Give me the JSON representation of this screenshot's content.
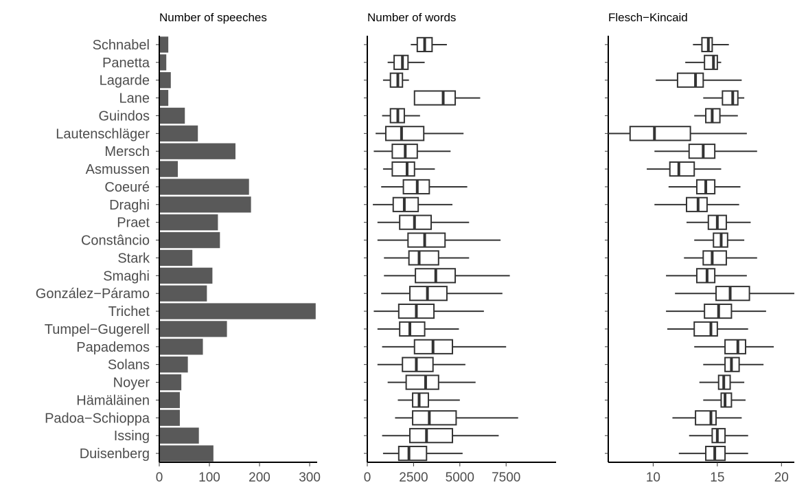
{
  "chart_data": [
    {
      "type": "bar",
      "orientation": "horizontal",
      "title": "Number of speeches",
      "xlabel": "",
      "ylabel": "",
      "xlim": [
        0,
        315
      ],
      "xticks": [
        0,
        100,
        200,
        300
      ],
      "categories": [
        "Schnabel",
        "Panetta",
        "Lagarde",
        "Lane",
        "Guindos",
        "Lautenschläger",
        "Mersch",
        "Asmussen",
        "Coeuré",
        "Draghi",
        "Praet",
        "Constâncio",
        "Stark",
        "Smaghi",
        "González−Páramo",
        "Trichet",
        "Tumpel−Gugerell",
        "Papademos",
        "Solans",
        "Noyer",
        "Hämäläinen",
        "Padoa−Schioppa",
        "Issing",
        "Duisenberg"
      ],
      "values": [
        18,
        14,
        23,
        18,
        51,
        77,
        152,
        37,
        179,
        183,
        117,
        121,
        66,
        106,
        95,
        312,
        135,
        87,
        57,
        44,
        41,
        41,
        79,
        108
      ],
      "color": "#595959",
      "grid": false
    },
    {
      "type": "boxplot",
      "orientation": "horizontal",
      "title": "Number of words",
      "xlabel": "",
      "xlim": [
        0,
        10200
      ],
      "xticks": [
        0,
        2500,
        5000,
        7500
      ],
      "xtick_labels": [
        "0",
        "2500",
        "5000",
        "7500"
      ],
      "grid": false,
      "boxes": [
        {
          "category": "Schnabel",
          "whisker_low": 2350,
          "q1": 2700,
          "median": 3100,
          "q3": 3500,
          "whisker_high": 4300
        },
        {
          "category": "Panetta",
          "whisker_low": 1100,
          "q1": 1450,
          "median": 1900,
          "q3": 2200,
          "whisker_high": 3100
        },
        {
          "category": "Lagarde",
          "whisker_low": 850,
          "q1": 1250,
          "median": 1650,
          "q3": 1900,
          "whisker_high": 2250
        },
        {
          "category": "Lane",
          "whisker_low": 2550,
          "q1": 2550,
          "median": 4100,
          "q3": 4750,
          "whisker_high": 6100
        },
        {
          "category": "Guindos",
          "whisker_low": 800,
          "q1": 1250,
          "median": 1650,
          "q3": 2000,
          "whisker_high": 2850
        },
        {
          "category": "Lautenschläger",
          "whisker_low": 450,
          "q1": 1000,
          "median": 1850,
          "q3": 3050,
          "whisker_high": 5200
        },
        {
          "category": "Mersch",
          "whisker_low": 350,
          "q1": 1350,
          "median": 2050,
          "q3": 2700,
          "whisker_high": 4500
        },
        {
          "category": "Asmussen",
          "whisker_low": 850,
          "q1": 1350,
          "median": 2150,
          "q3": 2550,
          "whisker_high": 3650
        },
        {
          "category": "Coeuré",
          "whisker_low": 750,
          "q1": 1950,
          "median": 2700,
          "q3": 3350,
          "whisker_high": 5400
        },
        {
          "category": "Draghi",
          "whisker_low": 300,
          "q1": 1400,
          "median": 2000,
          "q3": 2750,
          "whisker_high": 4600
        },
        {
          "category": "Praet",
          "whisker_low": 550,
          "q1": 1750,
          "median": 2550,
          "q3": 3450,
          "whisker_high": 5500
        },
        {
          "category": "Constâncio",
          "whisker_low": 550,
          "q1": 2200,
          "median": 3100,
          "q3": 4200,
          "whisker_high": 7200
        },
        {
          "category": "Stark",
          "whisker_low": 900,
          "q1": 2250,
          "median": 2800,
          "q3": 3850,
          "whisker_high": 5500
        },
        {
          "category": "Smaghi",
          "whisker_low": 900,
          "q1": 2600,
          "median": 3700,
          "q3": 4750,
          "whisker_high": 7700
        },
        {
          "category": "González−Páramo",
          "whisker_low": 750,
          "q1": 2300,
          "median": 3250,
          "q3": 4300,
          "whisker_high": 7300
        },
        {
          "category": "Trichet",
          "whisker_low": 350,
          "q1": 1700,
          "median": 2650,
          "q3": 3600,
          "whisker_high": 6300
        },
        {
          "category": "Tumpel−Gugerell",
          "whisker_low": 550,
          "q1": 1750,
          "median": 2300,
          "q3": 3100,
          "whisker_high": 4950
        },
        {
          "category": "Papademos",
          "whisker_low": 800,
          "q1": 2550,
          "median": 3550,
          "q3": 4600,
          "whisker_high": 7500
        },
        {
          "category": "Solans",
          "whisker_low": 550,
          "q1": 1900,
          "median": 2650,
          "q3": 3550,
          "whisker_high": 5300
        },
        {
          "category": "Noyer",
          "whisker_low": 1100,
          "q1": 2100,
          "median": 3150,
          "q3": 3850,
          "whisker_high": 5850
        },
        {
          "category": "Hämäläinen",
          "whisker_low": 1650,
          "q1": 2450,
          "median": 2800,
          "q3": 3300,
          "whisker_high": 5000
        },
        {
          "category": "Padoa−Schioppa",
          "whisker_low": 1500,
          "q1": 2450,
          "median": 3350,
          "q3": 4800,
          "whisker_high": 8150
        },
        {
          "category": "Issing",
          "whisker_low": 800,
          "q1": 2300,
          "median": 3200,
          "q3": 4600,
          "whisker_high": 7100
        },
        {
          "category": "Duisenberg",
          "whisker_low": 850,
          "q1": 1700,
          "median": 2250,
          "q3": 3200,
          "whisker_high": 5150
        }
      ]
    },
    {
      "type": "boxplot",
      "orientation": "horizontal",
      "title": "Flesch−Kincaid",
      "xlabel": "",
      "xlim": [
        6.5,
        21
      ],
      "xticks": [
        10,
        15,
        20
      ],
      "xtick_labels": [
        "10",
        "15",
        "20"
      ],
      "grid": false,
      "boxes": [
        {
          "category": "Schnabel",
          "whisker_low": 13.1,
          "q1": 13.8,
          "median": 14.3,
          "q3": 14.6,
          "whisker_high": 15.9
        },
        {
          "category": "Panetta",
          "whisker_low": 12.5,
          "q1": 14.0,
          "median": 14.7,
          "q3": 15.0,
          "whisker_high": 15.3
        },
        {
          "category": "Lagarde",
          "whisker_low": 10.2,
          "q1": 11.9,
          "median": 13.3,
          "q3": 13.9,
          "whisker_high": 16.9
        },
        {
          "category": "Lane",
          "whisker_low": 13.9,
          "q1": 15.4,
          "median": 16.2,
          "q3": 16.6,
          "whisker_high": 17.1
        },
        {
          "category": "Guindos",
          "whisker_low": 13.2,
          "q1": 14.1,
          "median": 14.6,
          "q3": 15.2,
          "whisker_high": 16.6
        },
        {
          "category": "Lautenschläger",
          "whisker_low": 6.5,
          "q1": 8.2,
          "median": 10.1,
          "q3": 12.9,
          "whisker_high": 17.3
        },
        {
          "category": "Mersch",
          "whisker_low": 10.1,
          "q1": 12.8,
          "median": 13.9,
          "q3": 14.8,
          "whisker_high": 18.1
        },
        {
          "category": "Asmussen",
          "whisker_low": 9.5,
          "q1": 11.3,
          "median": 12.0,
          "q3": 13.2,
          "whisker_high": 15.3
        },
        {
          "category": "Coeuré",
          "whisker_low": 11.2,
          "q1": 13.4,
          "median": 14.1,
          "q3": 14.8,
          "whisker_high": 16.8
        },
        {
          "category": "Draghi",
          "whisker_low": 10.1,
          "q1": 12.6,
          "median": 13.5,
          "q3": 14.2,
          "whisker_high": 16.7
        },
        {
          "category": "Praet",
          "whisker_low": 12.6,
          "q1": 14.3,
          "median": 15.0,
          "q3": 15.7,
          "whisker_high": 17.6
        },
        {
          "category": "Constâncio",
          "whisker_low": 13.2,
          "q1": 14.7,
          "median": 15.3,
          "q3": 15.8,
          "whisker_high": 17.1
        },
        {
          "category": "Stark",
          "whisker_low": 12.4,
          "q1": 13.9,
          "median": 14.6,
          "q3": 15.7,
          "whisker_high": 18.1
        },
        {
          "category": "Smaghi",
          "whisker_low": 11.0,
          "q1": 13.4,
          "median": 14.2,
          "q3": 14.8,
          "whisker_high": 17.3
        },
        {
          "category": "González−Páramo",
          "whisker_low": 11.7,
          "q1": 14.9,
          "median": 16.0,
          "q3": 17.5,
          "whisker_high": 21.0
        },
        {
          "category": "Trichet",
          "whisker_low": 11.0,
          "q1": 14.0,
          "median": 15.1,
          "q3": 16.1,
          "whisker_high": 18.8
        },
        {
          "category": "Tumpel−Gugerell",
          "whisker_low": 11.1,
          "q1": 13.2,
          "median": 14.5,
          "q3": 15.0,
          "whisker_high": 17.4
        },
        {
          "category": "Papademos",
          "whisker_low": 13.2,
          "q1": 15.6,
          "median": 16.6,
          "q3": 17.2,
          "whisker_high": 19.4
        },
        {
          "category": "Solans",
          "whisker_low": 13.9,
          "q1": 15.6,
          "median": 16.1,
          "q3": 16.7,
          "whisker_high": 18.6
        },
        {
          "category": "Noyer",
          "whisker_low": 13.6,
          "q1": 15.1,
          "median": 15.5,
          "q3": 16.0,
          "whisker_high": 17.1
        },
        {
          "category": "Hämäläinen",
          "whisker_low": 13.9,
          "q1": 15.3,
          "median": 15.6,
          "q3": 16.1,
          "whisker_high": 17.2
        },
        {
          "category": "Padoa−Schioppa",
          "whisker_low": 11.5,
          "q1": 13.3,
          "median": 14.5,
          "q3": 14.9,
          "whisker_high": 16.9
        },
        {
          "category": "Issing",
          "whisker_low": 12.8,
          "q1": 14.6,
          "median": 15.0,
          "q3": 15.6,
          "whisker_high": 17.4
        },
        {
          "category": "Duisenberg",
          "whisker_low": 12.0,
          "q1": 14.1,
          "median": 14.8,
          "q3": 15.6,
          "whisker_high": 17.4
        }
      ]
    }
  ]
}
